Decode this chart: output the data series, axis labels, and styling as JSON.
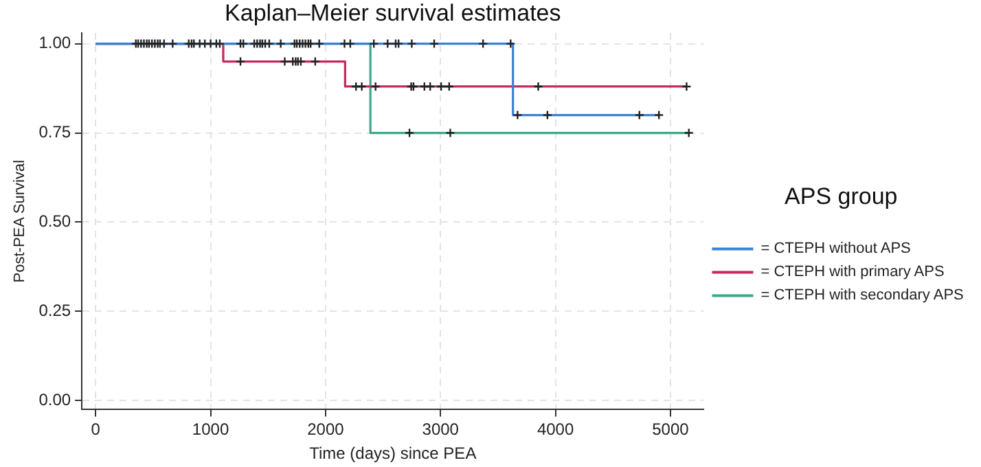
{
  "chart_data": {
    "type": "step",
    "title": "Kaplan–Meier survival estimates",
    "xlabel": "Time (days) since PEA",
    "ylabel": "Post-PEA Survival",
    "legend_title": "APS group",
    "legend": "right",
    "grid": true,
    "xlim": [
      -120,
      5290
    ],
    "xticks": [
      0,
      1000,
      2000,
      3000,
      4000,
      5000
    ],
    "ylim": [
      -0.025,
      1.03
    ],
    "yticks": [
      {
        "value": 0,
        "label": "0.00"
      },
      {
        "value": 0.25,
        "label": "0.25"
      },
      {
        "value": 0.5,
        "label": "0.50"
      },
      {
        "value": 0.75,
        "label": "0.75"
      },
      {
        "value": 1,
        "label": "1.00"
      }
    ],
    "series": [
      {
        "name": "= CTEPH without APS",
        "color": "#3a80d6",
        "x": [
          0,
          3630,
          4900
        ],
        "values": [
          1,
          0.8,
          0.8
        ]
      },
      {
        "name": "= CTEPH with primary APS",
        "color": "#c42a5c",
        "x": [
          0,
          1110,
          2170,
          5140
        ],
        "values": [
          1,
          0.95,
          0.88,
          0.88
        ]
      },
      {
        "name": "= CTEPH with secondary APS",
        "color": "#3aa98a",
        "x": [
          0,
          2390,
          5160
        ],
        "values": [
          1,
          0.75,
          0.75
        ]
      },
      {
        "type": "scatter",
        "marker": "cross",
        "color": "#222222",
        "x": [
          350,
          370,
          395,
          420,
          445,
          465,
          490,
          515,
          540,
          560,
          595,
          670,
          810,
          835,
          855,
          905,
          950,
          1000,
          1050,
          1080,
          1260,
          1285,
          1380,
          1405,
          1430,
          1450,
          1475,
          1510,
          1610,
          1730,
          1750,
          1775,
          1800,
          1825,
          1850,
          1870,
          1945,
          2165,
          2215,
          2420,
          2540,
          2610,
          2635,
          2750,
          2945,
          3370,
          3610,
          3670,
          3930,
          4730,
          4900
        ],
        "values": [
          1,
          1,
          1,
          1,
          1,
          1,
          1,
          1,
          1,
          1,
          1,
          1,
          1,
          1,
          1,
          1,
          1,
          1,
          1,
          1,
          1,
          1,
          1,
          1,
          1,
          1,
          1,
          1,
          1,
          1,
          1,
          1,
          1,
          1,
          1,
          1,
          1,
          1,
          1,
          1,
          1,
          1,
          1,
          1,
          1,
          1,
          1,
          0.8,
          0.8,
          0.8,
          0.8
        ]
      },
      {
        "type": "scatter",
        "marker": "cross",
        "color": "#222222",
        "x": [
          1260,
          1645,
          1715,
          1740,
          1760,
          1785,
          1910,
          2265,
          2315,
          2435,
          2745,
          2765,
          2860,
          2910,
          3005,
          3075,
          3850,
          5140
        ],
        "values": [
          0.95,
          0.95,
          0.95,
          0.95,
          0.95,
          0.95,
          0.95,
          0.88,
          0.88,
          0.88,
          0.88,
          0.88,
          0.88,
          0.88,
          0.88,
          0.88,
          0.88,
          0.88
        ]
      },
      {
        "type": "scatter",
        "marker": "cross",
        "color": "#222222",
        "x": [
          2730,
          3085,
          5160
        ],
        "values": [
          0.75,
          0.75,
          0.75
        ]
      }
    ]
  }
}
